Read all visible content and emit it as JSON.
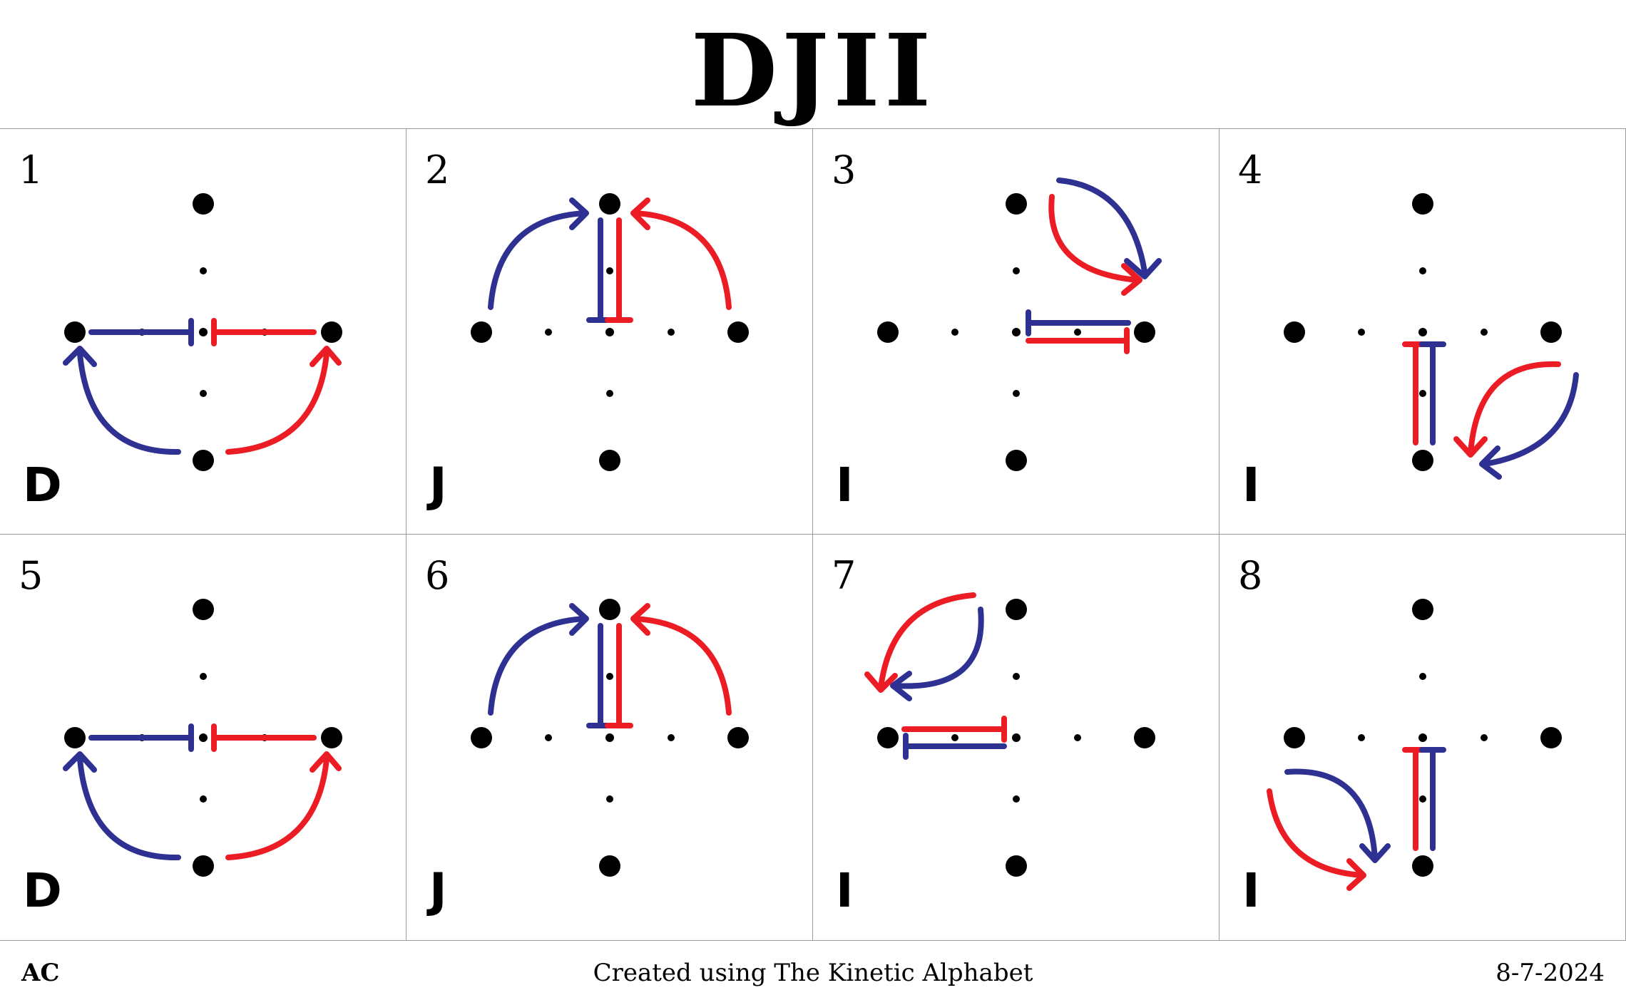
{
  "title": "DJII",
  "colors": {
    "blue": "#2e3192",
    "red": "#ec1c24",
    "dot": "#000000",
    "grid_line": "#9a9a9a"
  },
  "cells": [
    {
      "number": "1",
      "letter": "D"
    },
    {
      "number": "2",
      "letter": "J"
    },
    {
      "number": "3",
      "letter": "I"
    },
    {
      "number": "4",
      "letter": "I"
    },
    {
      "number": "5",
      "letter": "D"
    },
    {
      "number": "6",
      "letter": "J"
    },
    {
      "number": "7",
      "letter": "I"
    },
    {
      "number": "8",
      "letter": "I"
    }
  ],
  "footer": {
    "left": "AC",
    "center": "Created using The Kinetic Alphabet",
    "right": "8-7-2024"
  }
}
